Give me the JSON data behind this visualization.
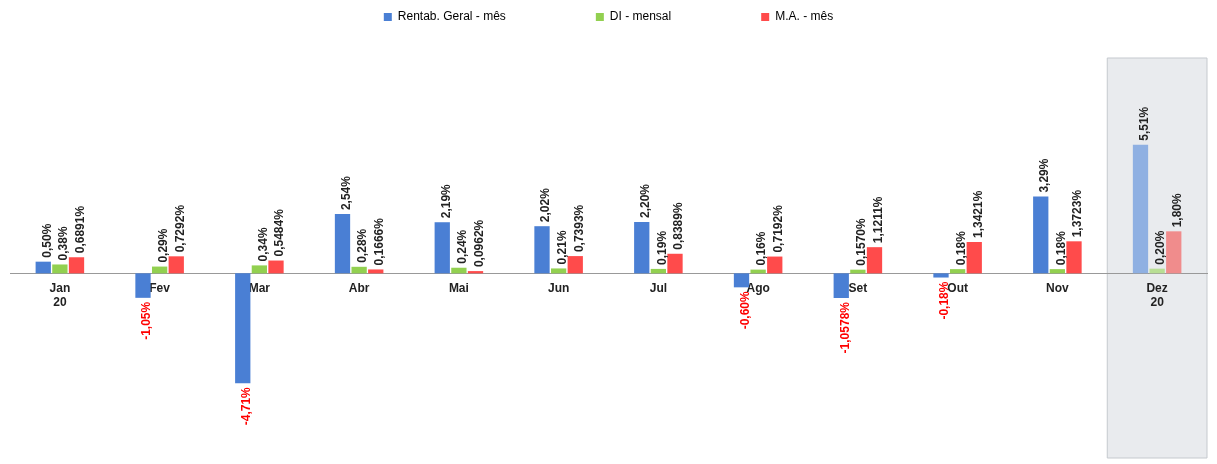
{
  "chart_data": {
    "type": "bar",
    "categories": [
      "Jan\n20",
      "Fev",
      "Mar",
      "Abr",
      "Mai",
      "Jun",
      "Jul",
      "Ago",
      "Set",
      "Out",
      "Nov",
      "Dez\n20"
    ],
    "series": [
      {
        "name": "Rentab. Geral - mês",
        "color": "#4a7fd4",
        "colors": [
          "#4a7fd4",
          "#4a7fd4",
          "#4a7fd4",
          "#4a7fd4",
          "#4a7fd4",
          "#4a7fd4",
          "#4a7fd4",
          "#4a7fd4",
          "#4a7fd4",
          "#4a7fd4",
          "#4a7fd4",
          "#8fb0e2"
        ],
        "values": [
          0.5,
          -1.05,
          -4.71,
          2.54,
          2.19,
          2.02,
          2.2,
          -0.6,
          -1.0578,
          -0.18,
          3.29,
          5.51
        ],
        "value_labels": [
          "0,50%",
          "-1,05%",
          "-4,71%",
          "2,54%",
          "2,19%",
          "2,02%",
          "2,20%",
          "-0,60%",
          "-1,0578%",
          "-0,18%",
          "3,29%",
          "5,51%"
        ]
      },
      {
        "name": "DI - mensal",
        "color": "#92d050",
        "colors": [
          "#92d050",
          "#92d050",
          "#92d050",
          "#92d050",
          "#92d050",
          "#92d050",
          "#92d050",
          "#92d050",
          "#92d050",
          "#92d050",
          "#92d050",
          "#b8de94"
        ],
        "values": [
          0.38,
          0.29,
          0.34,
          0.28,
          0.24,
          0.21,
          0.19,
          0.16,
          0.157,
          0.18,
          0.18,
          0.2
        ],
        "value_labels": [
          "0,38%",
          "0,29%",
          "0,34%",
          "0,28%",
          "0,24%",
          "0,21%",
          "0,19%",
          "0,16%",
          "0,1570%",
          "0,18%",
          "0,18%",
          "0,20%"
        ]
      },
      {
        "name": "M.A. - mês",
        "color": "#ff4b4b",
        "colors": [
          "#ff4b4b",
          "#ff4b4b",
          "#ff4b4b",
          "#ff4b4b",
          "#ff4b4b",
          "#ff4b4b",
          "#ff4b4b",
          "#ff4b4b",
          "#ff4b4b",
          "#ff4b4b",
          "#ff4b4b",
          "#f08c8c"
        ],
        "values": [
          0.6891,
          0.7292,
          0.5484,
          0.1666,
          0.0962,
          0.7393,
          0.8389,
          0.7192,
          1.1211,
          1.3421,
          1.3723,
          1.8
        ],
        "value_labels": [
          "0,6891%",
          "0,7292%",
          "0,5484%",
          "0,1666%",
          "0,0962%",
          "0,7393%",
          "0,8389%",
          "0,7192%",
          "1,1211%",
          "1,3421%",
          "1,3723%",
          "1,80%"
        ]
      }
    ],
    "bands": [
      {
        "axis": "x",
        "from": "Dez\n20",
        "to": "Dez\n20",
        "color": "#e9ebee"
      }
    ],
    "legend": "top",
    "grid": false
  }
}
